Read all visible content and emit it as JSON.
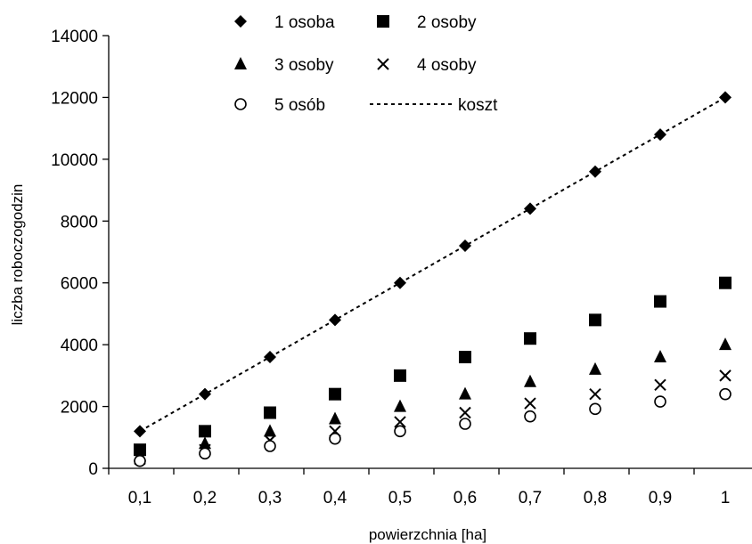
{
  "chart_data": {
    "type": "scatter",
    "title": "",
    "xlabel": "powierzchnia [ha]",
    "ylabel": "liczba roboczogodzin",
    "categories": [
      "0,1",
      "0,2",
      "0,3",
      "0,4",
      "0,5",
      "0,6",
      "0,7",
      "0,8",
      "0,9",
      "1"
    ],
    "ylim": [
      0,
      14000
    ],
    "y_ticks": [
      0,
      2000,
      4000,
      6000,
      8000,
      10000,
      12000,
      14000
    ],
    "y_tick_labels": [
      "0",
      "2000",
      "4000",
      "6000",
      "8000",
      "10000",
      "12000",
      "14000"
    ],
    "grid": false,
    "legend_position": "top",
    "series": [
      {
        "name": "1 osoba",
        "marker": "diamond",
        "color": "#000000",
        "values": [
          1200,
          2400,
          3600,
          4800,
          6000,
          7200,
          8400,
          9600,
          10800,
          12000
        ]
      },
      {
        "name": "2 osoby",
        "marker": "square",
        "color": "#000000",
        "values": [
          600,
          1200,
          1800,
          2400,
          3000,
          3600,
          4200,
          4800,
          5400,
          6000
        ]
      },
      {
        "name": "3 osoby",
        "marker": "triangle",
        "color": "#000000",
        "values": [
          400,
          800,
          1200,
          1600,
          2000,
          2400,
          2800,
          3200,
          3600,
          4000
        ]
      },
      {
        "name": "4 osoby",
        "marker": "cross",
        "color": "#000000",
        "values": [
          300,
          600,
          900,
          1200,
          1500,
          1800,
          2100,
          2400,
          2700,
          3000
        ]
      },
      {
        "name": "5 osób",
        "marker": "circle",
        "color": "#000000",
        "values": [
          240,
          480,
          720,
          960,
          1200,
          1440,
          1680,
          1920,
          2160,
          2400
        ]
      },
      {
        "name": "koszt",
        "marker": "dashed-line",
        "color": "#000000",
        "values": [
          1200,
          2400,
          3600,
          4800,
          6000,
          7200,
          8400,
          9600,
          10800,
          12000
        ]
      }
    ]
  }
}
